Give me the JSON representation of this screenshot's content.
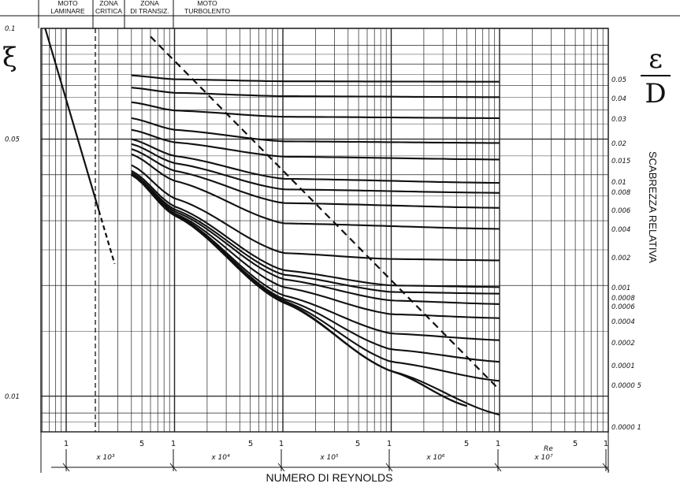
{
  "chart_data": {
    "type": "line",
    "title": "",
    "xlabel": "NUMERO DI REYNOLDS",
    "x_var": "Re",
    "x_scale": "log",
    "xlim": [
      500,
      10000000
    ],
    "ylabel": "ξ",
    "y_scale": "log",
    "ylim": [
      0.008,
      0.1
    ],
    "right_label": "ε / D",
    "right_title": "SCABREZZA RELATIVA",
    "grid": true,
    "zones": [
      "MOTO LAMINARE",
      "ZONA CRITICA",
      "ZONA DI TRANSIZ.",
      "MOTO TURBOLENTO"
    ],
    "y_tick_labels": [
      "0.1",
      "0.05",
      "0.01"
    ],
    "x_tick_labels": [
      "1",
      "5",
      "1",
      "5",
      "1",
      "5",
      "1",
      "5",
      "1",
      "5",
      "1"
    ],
    "decade_labels": [
      "x 10³",
      "x 10⁴",
      "x 10⁵",
      "x 10⁶",
      "x 10⁷"
    ],
    "roughness_labels": [
      "0.05",
      "0.04",
      "0.03",
      "0.02",
      "0.015",
      "0.01",
      "0.008",
      "0.006",
      "0.004",
      "0.002",
      "0.001",
      "0.0008",
      "0.0006",
      "0.0004",
      "0.0002",
      "0.0001",
      "0.0000 5",
      "0.0000 1"
    ],
    "laminar_series": {
      "x": [
        640,
        1000,
        2000,
        2800
      ],
      "y": [
        0.1,
        0.064,
        0.032,
        0.0229
      ]
    },
    "smooth_series": {
      "x": [
        4000,
        10000,
        100000,
        1000000,
        5000000
      ],
      "y": [
        0.04,
        0.031,
        0.018,
        0.0117,
        0.0094
      ]
    },
    "roughness_series": [
      {
        "eps": 0.05,
        "x": [
          4000,
          10000,
          100000,
          10000000
        ],
        "y": [
          0.0745,
          0.0727,
          0.0718,
          0.0716
        ]
      },
      {
        "eps": 0.04,
        "x": [
          4000,
          10000,
          100000,
          10000000
        ],
        "y": [
          0.069,
          0.0668,
          0.0654,
          0.065
        ]
      },
      {
        "eps": 0.03,
        "x": [
          4000,
          10000,
          100000,
          10000000
        ],
        "y": [
          0.063,
          0.0598,
          0.0575,
          0.057
        ]
      },
      {
        "eps": 0.02,
        "x": [
          4000,
          10000,
          100000,
          10000000
        ],
        "y": [
          0.057,
          0.053,
          0.0493,
          0.0488
        ]
      },
      {
        "eps": 0.015,
        "x": [
          4000,
          10000,
          100000,
          10000000
        ],
        "y": [
          0.053,
          0.049,
          0.0448,
          0.044
        ]
      },
      {
        "eps": 0.01,
        "x": [
          4000,
          10000,
          100000,
          10000000
        ],
        "y": [
          0.05,
          0.045,
          0.039,
          0.038
        ]
      },
      {
        "eps": 0.008,
        "x": [
          4000,
          10000,
          100000,
          10000000
        ],
        "y": [
          0.0485,
          0.043,
          0.0365,
          0.0357
        ]
      },
      {
        "eps": 0.006,
        "x": [
          4000,
          10000,
          100000,
          10000000
        ],
        "y": [
          0.047,
          0.041,
          0.0335,
          0.0325
        ]
      },
      {
        "eps": 0.004,
        "x": [
          4000,
          10000,
          100000,
          10000000
        ],
        "y": [
          0.0455,
          0.0385,
          0.0295,
          0.0285
        ]
      },
      {
        "eps": 0.002,
        "x": [
          4000,
          10000,
          100000,
          1000000,
          10000000
        ],
        "y": [
          0.0425,
          0.0345,
          0.0245,
          0.0236,
          0.0234
        ]
      },
      {
        "eps": 0.001,
        "x": [
          4000,
          10000,
          100000,
          1000000,
          10000000
        ],
        "y": [
          0.041,
          0.0328,
          0.022,
          0.02,
          0.0198
        ]
      },
      {
        "eps": 0.0008,
        "x": [
          4000,
          10000,
          100000,
          1000000,
          10000000
        ],
        "y": [
          0.0405,
          0.0322,
          0.0214,
          0.0192,
          0.019
        ]
      },
      {
        "eps": 0.0006,
        "x": [
          4000,
          10000,
          100000,
          1000000,
          10000000
        ],
        "y": [
          0.0403,
          0.0318,
          0.0208,
          0.0182,
          0.0178
        ]
      },
      {
        "eps": 0.0004,
        "x": [
          4000,
          10000,
          100000,
          1000000,
          10000000
        ],
        "y": [
          0.04,
          0.0314,
          0.0198,
          0.0167,
          0.0163
        ]
      },
      {
        "eps": 0.0002,
        "x": [
          4000,
          10000,
          100000,
          1000000,
          10000000
        ],
        "y": [
          0.04,
          0.0312,
          0.0188,
          0.0148,
          0.0142
        ]
      },
      {
        "eps": 0.0001,
        "x": [
          4000,
          10000,
          100000,
          1000000,
          10000000
        ],
        "y": [
          0.04,
          0.0311,
          0.0184,
          0.0134,
          0.0124
        ]
      },
      {
        "eps": 5e-05,
        "x": [
          4000,
          10000,
          100000,
          1000000,
          10000000
        ],
        "y": [
          0.04,
          0.031,
          0.0182,
          0.0124,
          0.011
        ]
      },
      {
        "eps": 1e-05,
        "x": [
          4000,
          10000,
          100000,
          1000000,
          10000000
        ],
        "y": [
          0.04,
          0.031,
          0.0181,
          0.0117,
          0.0089
        ]
      }
    ],
    "dashed_boundary": {
      "x": [
        6000,
        10000000
      ],
      "y": [
        0.095,
        0.0104
      ]
    }
  }
}
